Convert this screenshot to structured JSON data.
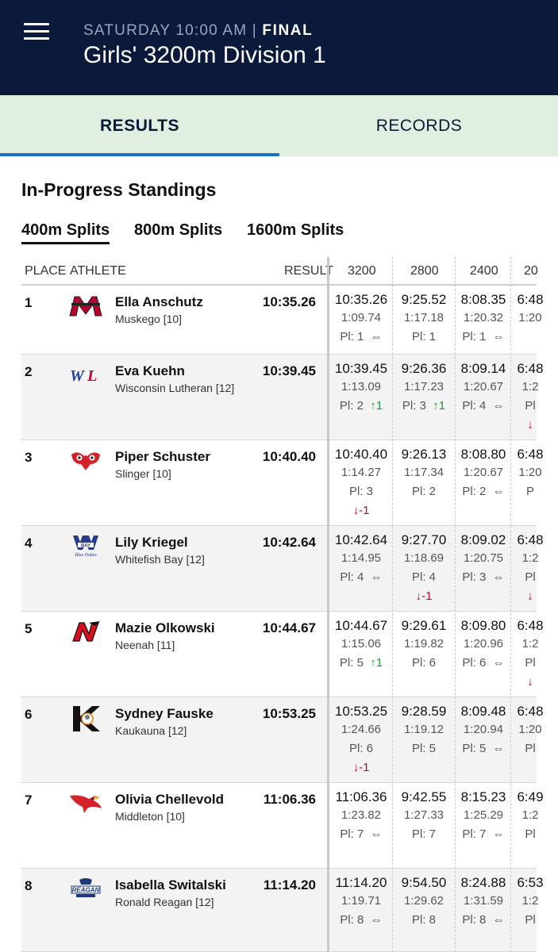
{
  "header": {
    "eyebrow_time": "SATURDAY 10:00 AM | ",
    "eyebrow_status": "FINAL",
    "title": "Girls' 3200m Division 1"
  },
  "tabs": {
    "results": "RESULTS",
    "records": "RECORDS"
  },
  "section_title": "In-Progress Standings",
  "split_tabs": [
    "400m Splits",
    "800m Splits",
    "1600m Splits"
  ],
  "columns": {
    "place": "PLACE",
    "athlete": "ATHLETE",
    "result": "RESULT",
    "c1": "3200",
    "c2": "2800",
    "c3": "2400",
    "c4": "20"
  },
  "rows": [
    {
      "place": "1",
      "name": "Ella Anschutz",
      "school": "Muskego [10]",
      "result": "10:35.26",
      "logo": "muskego-logo",
      "s1": {
        "time": "10:35.26",
        "split": "1:09.74",
        "pl": "Pl: 1",
        "move": "⇔",
        "move_line": ""
      },
      "s2": {
        "time": "9:25.52",
        "split": "1:17.18",
        "pl": "Pl: 1",
        "move": "",
        "move_line": ""
      },
      "s3": {
        "time": "8:08.35",
        "split": "1:20.32",
        "pl": "Pl: 1",
        "move": "⇔",
        "move_line": ""
      },
      "s4": {
        "time": "6:48",
        "split": "1:20",
        "pl": "",
        "move": "",
        "move_line": ""
      }
    },
    {
      "place": "2",
      "name": "Eva Kuehn",
      "school": "Wisconsin Lutheran [12]",
      "result": "10:39.45",
      "logo": "wisconsin-lutheran-logo",
      "s1": {
        "time": "10:39.45",
        "split": "1:13.09",
        "pl": "Pl: 2",
        "move": "↑1",
        "move_line": ""
      },
      "s2": {
        "time": "9:26.36",
        "split": "1:17.23",
        "pl": "Pl: 3",
        "move": "↑1",
        "move_line": ""
      },
      "s3": {
        "time": "8:09.14",
        "split": "1:20.67",
        "pl": "Pl: 4",
        "move": "⇔",
        "move_line": ""
      },
      "s4": {
        "time": "6:48",
        "split": "1:2",
        "pl": "Pl",
        "move": "",
        "move_line": "↓"
      }
    },
    {
      "place": "3",
      "name": "Piper Schuster",
      "school": "Slinger [10]",
      "result": "10:40.40",
      "logo": "slinger-owl-logo",
      "s1": {
        "time": "10:40.40",
        "split": "1:14.27",
        "pl": "Pl: 3",
        "move": "",
        "move_line": "↓-1"
      },
      "s2": {
        "time": "9:26.13",
        "split": "1:17.34",
        "pl": "Pl: 2",
        "move": "",
        "move_line": ""
      },
      "s3": {
        "time": "8:08.80",
        "split": "1:20.67",
        "pl": "Pl: 2",
        "move": "⇔",
        "move_line": ""
      },
      "s4": {
        "time": "6:48",
        "split": "1:20",
        "pl": "P",
        "move": "",
        "move_line": ""
      }
    },
    {
      "place": "4",
      "name": "Lily Kriegel",
      "school": "Whitefish Bay [12]",
      "result": "10:42.64",
      "logo": "whitefish-bay-logo",
      "s1": {
        "time": "10:42.64",
        "split": "1:14.95",
        "pl": "Pl: 4",
        "move": "⇔",
        "move_line": ""
      },
      "s2": {
        "time": "9:27.70",
        "split": "1:18.69",
        "pl": "Pl: 4",
        "move": "",
        "move_line": "↓-1"
      },
      "s3": {
        "time": "8:09.02",
        "split": "1:20.75",
        "pl": "Pl: 3",
        "move": "⇔",
        "move_line": ""
      },
      "s4": {
        "time": "6:48",
        "split": "1:2",
        "pl": "Pl",
        "move": "",
        "move_line": "↓"
      }
    },
    {
      "place": "5",
      "name": "Mazie Olkowski",
      "school": "Neenah [11]",
      "result": "10:44.67",
      "logo": "neenah-logo",
      "s1": {
        "time": "10:44.67",
        "split": "1:15.06",
        "pl": "Pl: 5",
        "move": "↑1",
        "move_line": ""
      },
      "s2": {
        "time": "9:29.61",
        "split": "1:19.82",
        "pl": "Pl: 6",
        "move": "",
        "move_line": ""
      },
      "s3": {
        "time": "8:09.80",
        "split": "1:20.96",
        "pl": "Pl: 6",
        "move": "⇔",
        "move_line": ""
      },
      "s4": {
        "time": "6:48",
        "split": "1:2",
        "pl": "Pl",
        "move": "",
        "move_line": "↓"
      }
    },
    {
      "place": "6",
      "name": "Sydney Fauske",
      "school": "Kaukauna [12]",
      "result": "10:53.25",
      "logo": "kaukauna-logo",
      "s1": {
        "time": "10:53.25",
        "split": "1:24.66",
        "pl": "Pl: 6",
        "move": "",
        "move_line": "↓-1"
      },
      "s2": {
        "time": "9:28.59",
        "split": "1:19.12",
        "pl": "Pl: 5",
        "move": "",
        "move_line": ""
      },
      "s3": {
        "time": "8:09.48",
        "split": "1:20.94",
        "pl": "Pl: 5",
        "move": "⇔",
        "move_line": ""
      },
      "s4": {
        "time": "6:48",
        "split": "1:20",
        "pl": "Pl",
        "move": "",
        "move_line": ""
      }
    },
    {
      "place": "7",
      "name": "Olivia Chellevold",
      "school": "Middleton [10]",
      "result": "11:06.36",
      "logo": "middleton-cardinal-logo",
      "s1": {
        "time": "11:06.36",
        "split": "1:23.82",
        "pl": "Pl: 7",
        "move": "⇔",
        "move_line": ""
      },
      "s2": {
        "time": "9:42.55",
        "split": "1:27.33",
        "pl": "Pl: 7",
        "move": "",
        "move_line": ""
      },
      "s3": {
        "time": "8:15.23",
        "split": "1:25.29",
        "pl": "Pl: 7",
        "move": "⇔",
        "move_line": ""
      },
      "s4": {
        "time": "6:49",
        "split": "1:2",
        "pl": "Pl",
        "move": "",
        "move_line": ""
      }
    },
    {
      "place": "8",
      "name": "Isabella Switalski",
      "school": "Ronald Reagan [12]",
      "result": "11:14.20",
      "logo": "reagan-logo",
      "s1": {
        "time": "11:14.20",
        "split": "1:19.71",
        "pl": "Pl: 8",
        "move": "⇔",
        "move_line": ""
      },
      "s2": {
        "time": "9:54.50",
        "split": "1:29.62",
        "pl": "Pl: 8",
        "move": "",
        "move_line": ""
      },
      "s3": {
        "time": "8:24.88",
        "split": "1:31.59",
        "pl": "Pl: 8",
        "move": "⇔",
        "move_line": ""
      },
      "s4": {
        "time": "6:53",
        "split": "1:2",
        "pl": "Pl",
        "move": "",
        "move_line": ""
      }
    }
  ],
  "colors": {
    "navy": "#0b1a3a",
    "tab_bg": "#e0efdf",
    "accent": "#1a73c6",
    "up": "#1d9a3a",
    "down": "#c3002f"
  }
}
